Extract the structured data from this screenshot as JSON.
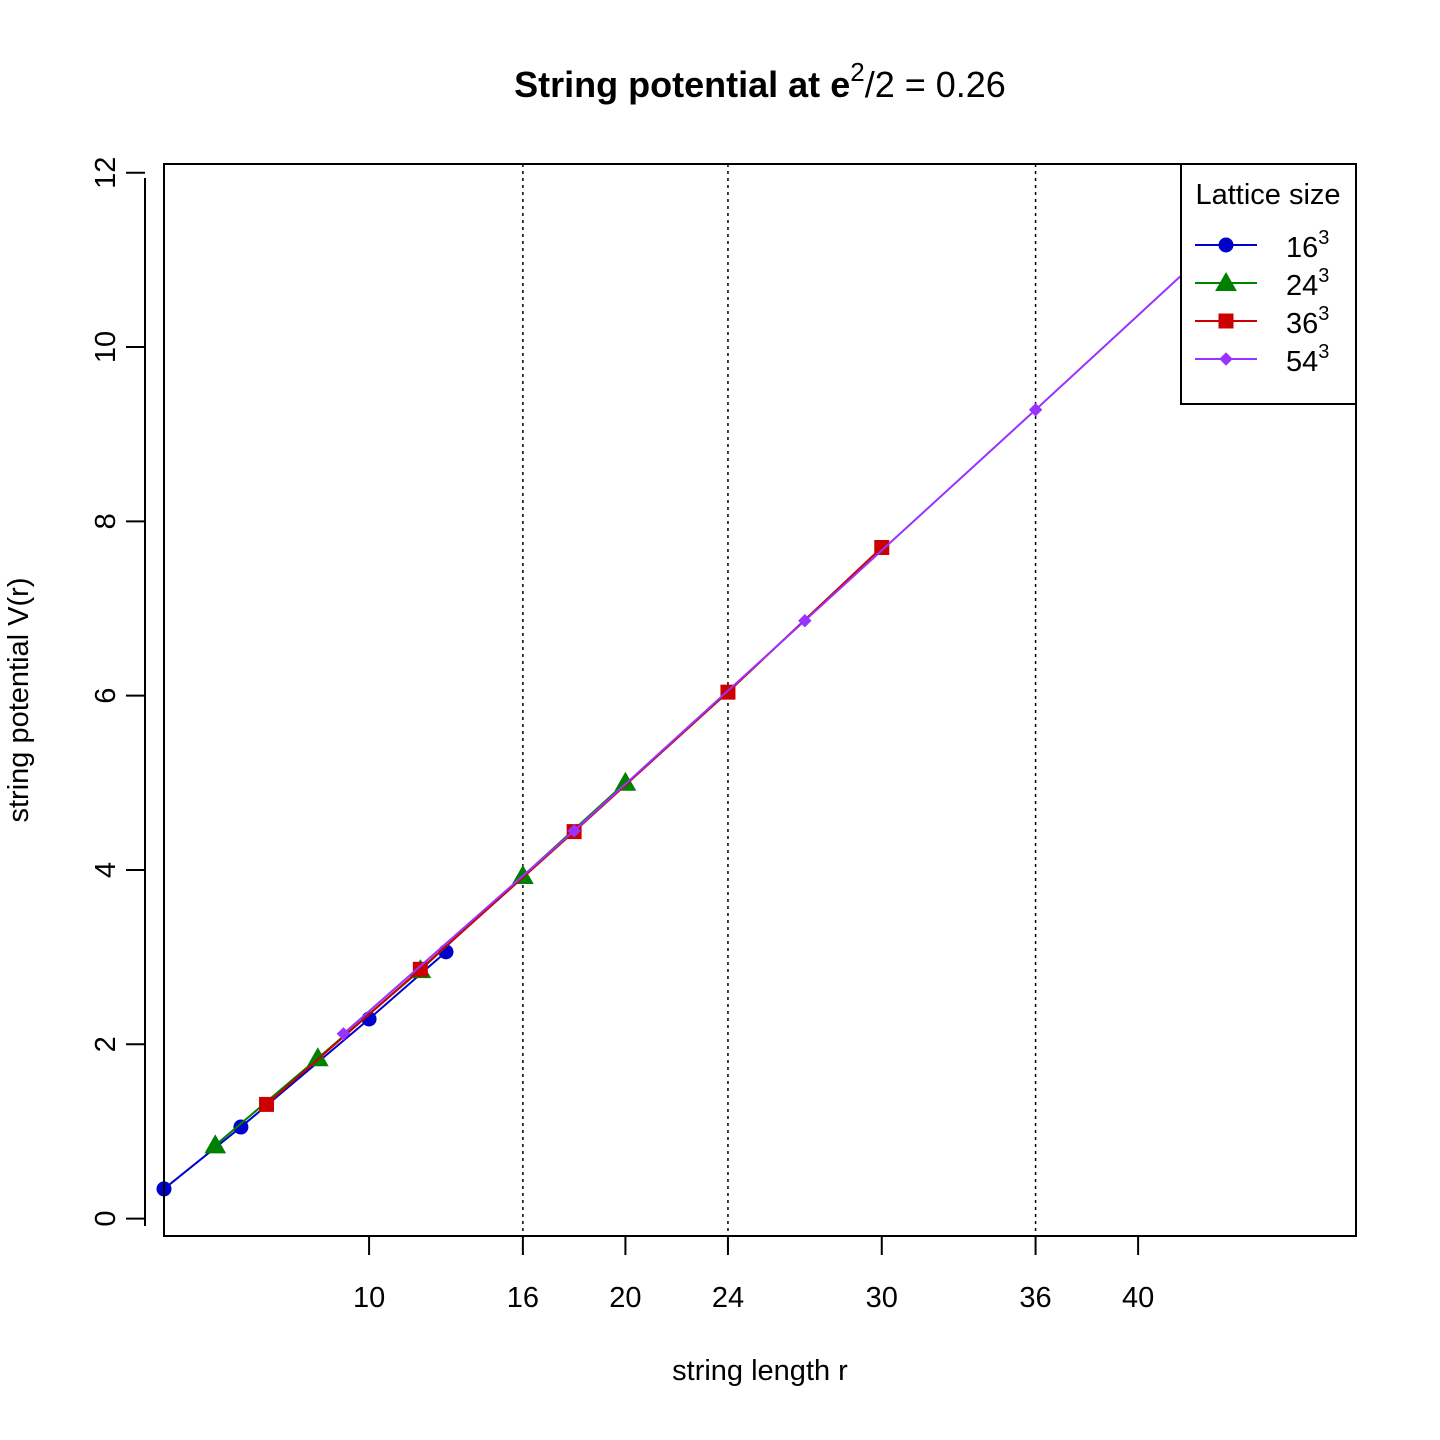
{
  "chart_data": {
    "type": "line",
    "title": {
      "bold": "String potential at ",
      "e": "e",
      "exponent": "2",
      "rest": "/2",
      "eq": " = 0.26"
    },
    "xlabel": "string length r",
    "ylabel": "string potential V(r)",
    "xlim": [
      2,
      48.5
    ],
    "ylim": [
      -0.2,
      12.1
    ],
    "x_ticks": [
      10,
      16,
      20,
      24,
      30,
      36,
      40
    ],
    "y_ticks": [
      0,
      2,
      4,
      6,
      8,
      10,
      12
    ],
    "vlines": [
      16,
      24,
      36
    ],
    "grid": false,
    "legend": {
      "title": "Lattice size",
      "position": "top-right",
      "entries": [
        {
          "base": "16",
          "sup": "3"
        },
        {
          "base": "24",
          "sup": "3"
        },
        {
          "base": "36",
          "sup": "3"
        },
        {
          "base": "54",
          "sup": "3"
        }
      ]
    },
    "series": [
      {
        "legend_index": 0,
        "color": "#0000CC",
        "marker": "circle",
        "x": [
          2,
          5,
          10,
          13
        ],
        "y": [
          0.34,
          1.05,
          2.29,
          3.06
        ]
      },
      {
        "legend_index": 1,
        "color": "#008000",
        "marker": "triangle",
        "x": [
          4,
          8,
          12,
          16,
          20
        ],
        "y": [
          0.84,
          1.84,
          2.85,
          3.93,
          5.0
        ]
      },
      {
        "legend_index": 2,
        "color": "#CC0000",
        "marker": "square",
        "x": [
          6,
          12,
          18,
          24,
          30
        ],
        "y": [
          1.31,
          2.86,
          4.44,
          6.04,
          7.7
        ]
      },
      {
        "legend_index": 3,
        "color": "#9933FF",
        "marker": "diamond",
        "x": [
          9,
          18,
          27,
          36,
          45
        ],
        "y": [
          2.12,
          4.45,
          6.86,
          9.28,
          11.72
        ]
      }
    ]
  }
}
